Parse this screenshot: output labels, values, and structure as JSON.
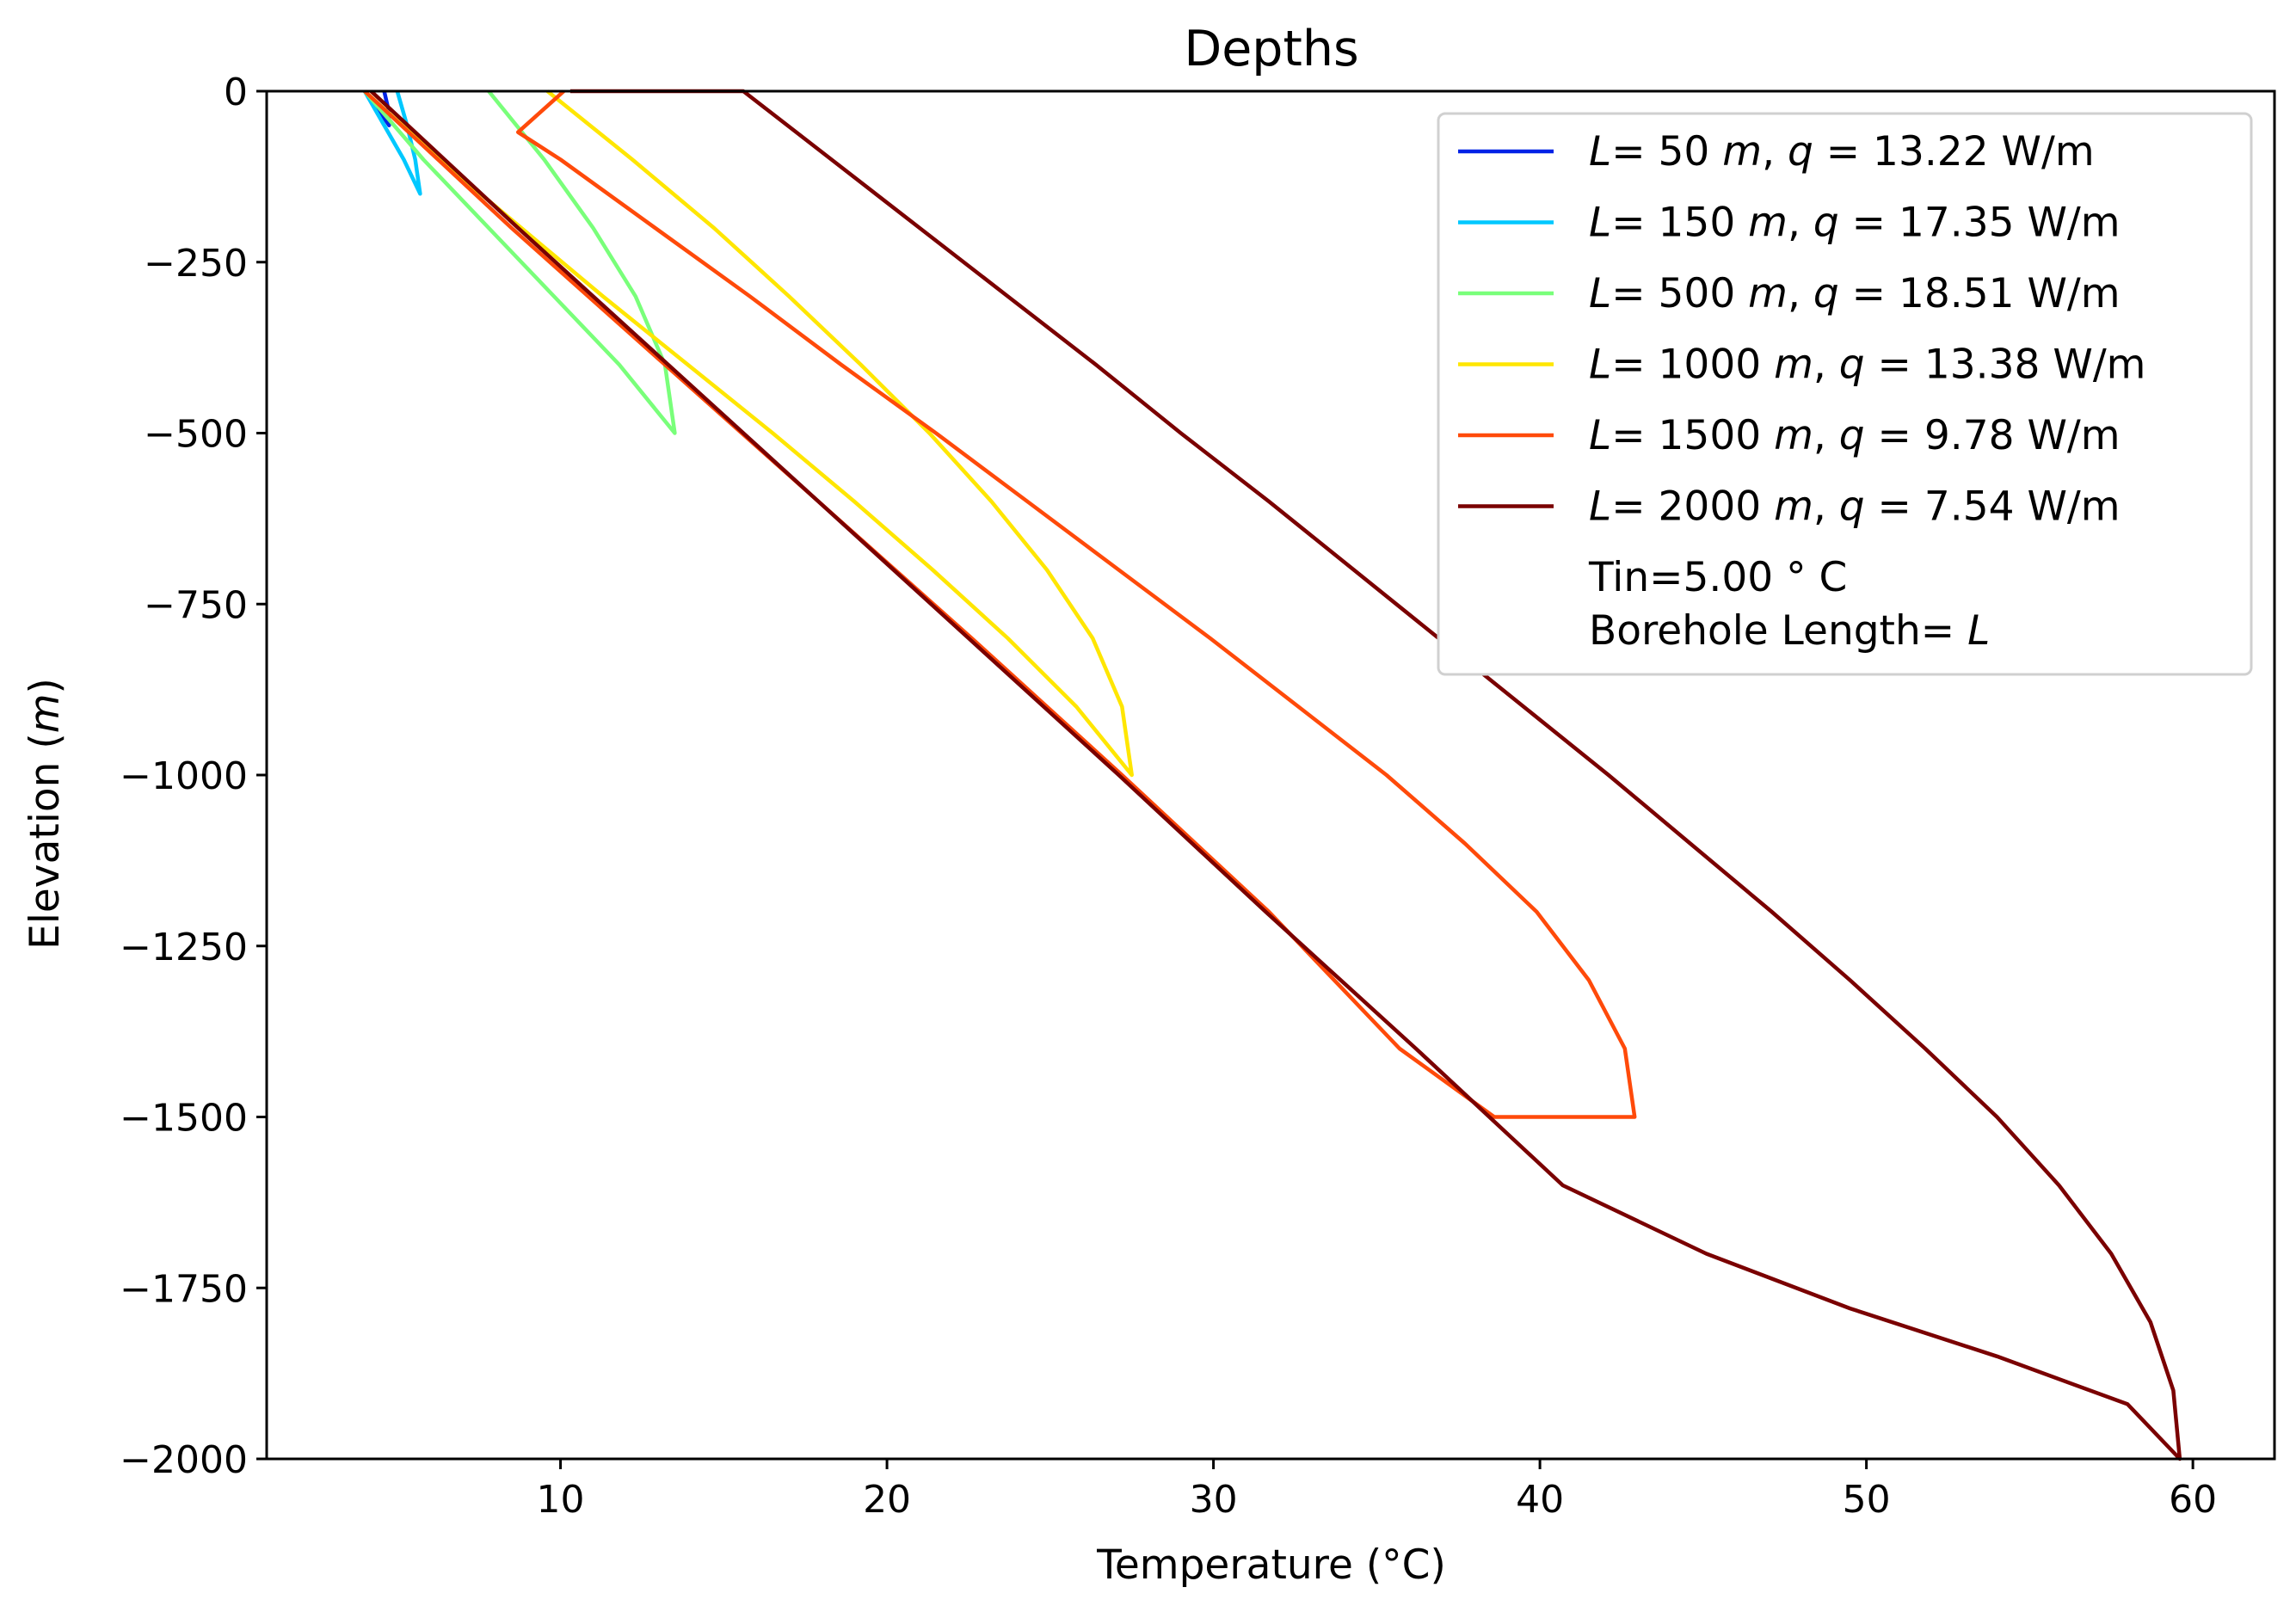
{
  "chart_data": {
    "type": "line",
    "title": "Depths",
    "xlabel": "Temperature (°C)",
    "ylabel_parts": {
      "pre": "Elevation (",
      "unit": "m",
      "post": ")"
    },
    "xlim": [
      1,
      62.5
    ],
    "ylim": [
      -2000,
      0
    ],
    "xticks": [
      10,
      20,
      30,
      40,
      50,
      60
    ],
    "xtick_labels": [
      "10",
      "20",
      "30",
      "40",
      "50",
      "60"
    ],
    "yticks": [
      0,
      -250,
      -500,
      -750,
      -1000,
      -1250,
      -1500,
      -1750,
      -2000
    ],
    "ytick_labels": [
      "0",
      "−250",
      "−500",
      "−750",
      "−1000",
      "−1250",
      "−1500",
      "−1750",
      "−2000"
    ],
    "grid": false,
    "legend_position": "top-right",
    "series": [
      {
        "L": "50",
        "q": "13.22",
        "color": "#0022e6",
        "down": [
          [
            4.0,
            0
          ],
          [
            4.4,
            -25
          ],
          [
            4.75,
            -50
          ]
        ],
        "up": [
          [
            4.75,
            -50
          ],
          [
            4.72,
            -25
          ],
          [
            4.6,
            0
          ]
        ]
      },
      {
        "L": "150",
        "q": "17.35",
        "color": "#00c8ff",
        "down": [
          [
            4.0,
            0
          ],
          [
            4.6,
            -50
          ],
          [
            5.2,
            -100
          ],
          [
            5.7,
            -150
          ]
        ],
        "up": [
          [
            5.7,
            -150
          ],
          [
            5.55,
            -100
          ],
          [
            5.3,
            -50
          ],
          [
            5.0,
            0
          ]
        ]
      },
      {
        "L": "500",
        "q": "18.51",
        "color": "#79ff7a",
        "down": [
          [
            4.0,
            0
          ],
          [
            5.8,
            -100
          ],
          [
            7.8,
            -200
          ],
          [
            9.8,
            -300
          ],
          [
            11.8,
            -400
          ],
          [
            13.5,
            -500
          ]
        ],
        "up": [
          [
            13.5,
            -500
          ],
          [
            13.2,
            -400
          ],
          [
            12.3,
            -300
          ],
          [
            11.0,
            -200
          ],
          [
            9.5,
            -100
          ],
          [
            7.8,
            0
          ]
        ]
      },
      {
        "L": "1000",
        "q": "13.38",
        "color": "#ffe600",
        "down": [
          [
            4.0,
            0
          ],
          [
            6.3,
            -100
          ],
          [
            8.8,
            -200
          ],
          [
            11.3,
            -300
          ],
          [
            13.9,
            -400
          ],
          [
            16.5,
            -500
          ],
          [
            19.0,
            -600
          ],
          [
            21.4,
            -700
          ],
          [
            23.7,
            -800
          ],
          [
            25.8,
            -900
          ],
          [
            27.5,
            -1000
          ]
        ],
        "up": [
          [
            27.5,
            -1000
          ],
          [
            27.2,
            -900
          ],
          [
            26.3,
            -800
          ],
          [
            24.9,
            -700
          ],
          [
            23.2,
            -600
          ],
          [
            21.3,
            -500
          ],
          [
            19.2,
            -400
          ],
          [
            17.0,
            -300
          ],
          [
            14.7,
            -200
          ],
          [
            12.2,
            -100
          ],
          [
            9.6,
            0
          ]
        ]
      },
      {
        "L": "1500",
        "q": "9.78",
        "color": "#ff4a0a",
        "down": [
          [
            4.0,
            0
          ],
          [
            8.5,
            -200
          ],
          [
            13.2,
            -400
          ],
          [
            17.9,
            -600
          ],
          [
            22.6,
            -800
          ],
          [
            27.2,
            -1000
          ],
          [
            31.7,
            -1200
          ],
          [
            35.7,
            -1400
          ],
          [
            38.6,
            -1500
          ],
          [
            42.9,
            -1500
          ]
        ],
        "up": [
          [
            42.9,
            -1500
          ],
          [
            42.6,
            -1400
          ],
          [
            41.5,
            -1300
          ],
          [
            39.9,
            -1200
          ],
          [
            37.7,
            -1100
          ],
          [
            35.3,
            -1000
          ],
          [
            32.6,
            -900
          ],
          [
            29.9,
            -800
          ],
          [
            27.1,
            -700
          ],
          [
            24.3,
            -600
          ],
          [
            21.5,
            -500
          ],
          [
            18.6,
            -400
          ],
          [
            15.8,
            -300
          ],
          [
            12.9,
            -200
          ],
          [
            10.0,
            -100
          ],
          [
            8.7,
            -60
          ],
          [
            10.1,
            0
          ]
        ]
      },
      {
        "L": "2000",
        "q": "7.54",
        "color": "#7a0000",
        "down": [
          [
            4.2,
            0
          ],
          [
            8.7,
            -200
          ],
          [
            13.3,
            -400
          ],
          [
            17.9,
            -600
          ],
          [
            22.5,
            -800
          ],
          [
            27.1,
            -1000
          ],
          [
            31.6,
            -1200
          ],
          [
            36.2,
            -1400
          ],
          [
            40.7,
            -1600
          ],
          [
            45.1,
            -1700
          ],
          [
            49.5,
            -1780
          ],
          [
            54.0,
            -1850
          ],
          [
            58.0,
            -1920
          ],
          [
            59.6,
            -2000
          ]
        ],
        "up": [
          [
            59.6,
            -2000
          ],
          [
            59.4,
            -1900
          ],
          [
            58.7,
            -1800
          ],
          [
            57.5,
            -1700
          ],
          [
            55.9,
            -1600
          ],
          [
            54.0,
            -1500
          ],
          [
            51.8,
            -1400
          ],
          [
            49.5,
            -1300
          ],
          [
            47.1,
            -1200
          ],
          [
            44.6,
            -1100
          ],
          [
            42.1,
            -1000
          ],
          [
            39.5,
            -900
          ],
          [
            36.9,
            -800
          ],
          [
            34.3,
            -700
          ],
          [
            31.7,
            -600
          ],
          [
            29.0,
            -500
          ],
          [
            26.4,
            -400
          ],
          [
            23.7,
            -300
          ],
          [
            21.0,
            -200
          ],
          [
            18.3,
            -100
          ],
          [
            15.6,
            0
          ],
          [
            10.3,
            0
          ]
        ]
      }
    ],
    "legend_entry_template": {
      "L_symbol": "L",
      "eq": "= ",
      "unit_m": "m",
      "comma": ", ",
      "q_symbol": "q",
      "eq2": " = ",
      "q_unit": " W/m"
    },
    "legend_notes": [
      "Tin=5.00 ° C"
    ],
    "legend_borehole": {
      "text": "Borehole Length= ",
      "symbol": "L"
    }
  }
}
